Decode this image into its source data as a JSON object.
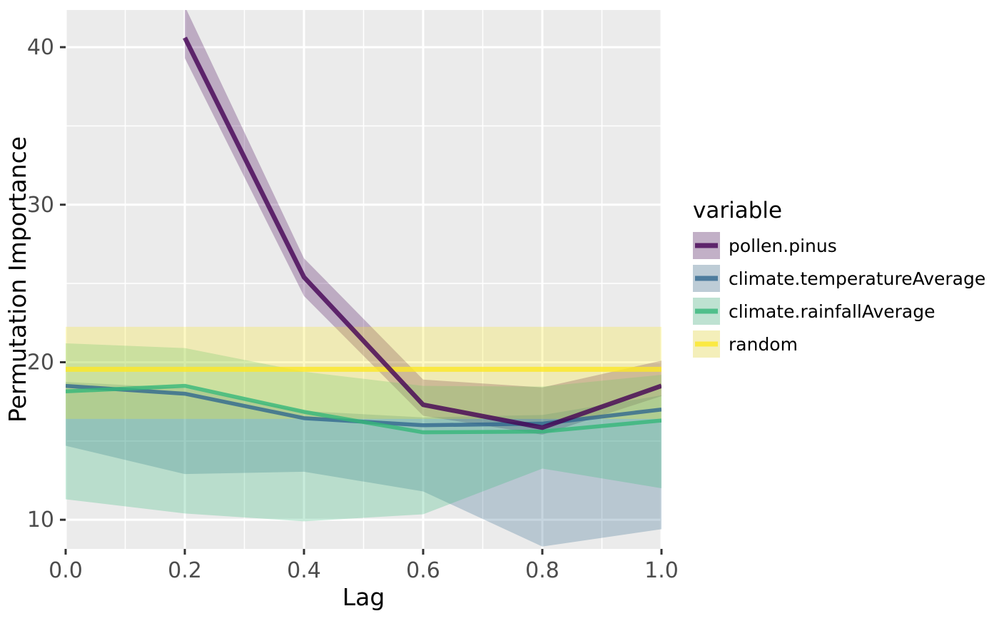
{
  "chart_data": {
    "type": "line",
    "title": "",
    "xlabel": "Lag",
    "ylabel": "Permutation Importance",
    "legend_title": "variable",
    "legend_position": "right",
    "grid": true,
    "panel_bg": "#EBEBEB",
    "grid_color": "#FFFFFF",
    "tick_label_color": "#4D4D4D",
    "tick_mark_color": "#333333",
    "axis_title_color": "#000000",
    "xlim": [
      0.0,
      1.0
    ],
    "ylim": [
      8.15,
      42.36
    ],
    "x_major_ticks": [
      0.0,
      0.2,
      0.4,
      0.6,
      0.8,
      1.0
    ],
    "x_tick_labels": [
      "0.0",
      "0.2",
      "0.4",
      "0.6",
      "0.8",
      "1.0"
    ],
    "x_minor_ticks": [
      0.1,
      0.3,
      0.5,
      0.7,
      0.9
    ],
    "y_major_ticks": [
      10,
      20,
      30,
      40
    ],
    "y_tick_labels": [
      "10",
      "20",
      "30",
      "40"
    ],
    "y_minor_ticks": [
      15,
      25,
      35
    ],
    "ribbon_opacity": 0.27,
    "line_opacity": 0.8,
    "series": [
      {
        "name": "pollen.pinus",
        "color": "#440154",
        "line_width": 6.5,
        "x": [
          0.2,
          0.4,
          0.6,
          0.8,
          1.0
        ],
        "y": [
          40.6,
          25.4,
          17.3,
          15.85,
          18.5
        ],
        "ymin": [
          39.3,
          24.2,
          16.6,
          15.4,
          17.85
        ],
        "ymax": [
          42.6,
          26.6,
          18.9,
          18.4,
          20.1
        ]
      },
      {
        "name": "climate.temperatureAverage",
        "color": "#31688E",
        "line_width": 5.5,
        "x": [
          0.0,
          0.2,
          0.4,
          0.6,
          0.8,
          1.0
        ],
        "y": [
          18.5,
          18.0,
          16.45,
          16.0,
          16.1,
          17.0
        ],
        "ymin": [
          14.7,
          12.9,
          13.05,
          11.8,
          8.3,
          9.4
        ],
        "ymax": [
          18.75,
          18.35,
          16.9,
          16.5,
          16.65,
          17.9
        ]
      },
      {
        "name": "climate.rainfallAverage",
        "color": "#35B779",
        "line_width": 5.5,
        "x": [
          0.0,
          0.2,
          0.4,
          0.6,
          0.8,
          1.0
        ],
        "y": [
          18.15,
          18.5,
          16.85,
          15.55,
          15.6,
          16.3
        ],
        "ymin": [
          11.3,
          10.4,
          9.9,
          10.35,
          13.25,
          12.0
        ],
        "ymax": [
          21.2,
          20.9,
          19.4,
          18.5,
          18.45,
          19.2
        ]
      },
      {
        "name": "random",
        "color": "#FDE725",
        "line_width": 7,
        "x": [
          0.0,
          0.2,
          0.4,
          0.6,
          0.8,
          1.0
        ],
        "y": [
          19.55,
          19.55,
          19.55,
          19.55,
          19.55,
          19.55
        ],
        "ymin": [
          16.4,
          16.4,
          16.4,
          16.4,
          16.4,
          16.4
        ],
        "ymax": [
          22.25,
          22.25,
          22.25,
          22.25,
          22.25,
          22.25
        ]
      }
    ],
    "legend_key_bg": "#F2F2F2"
  }
}
